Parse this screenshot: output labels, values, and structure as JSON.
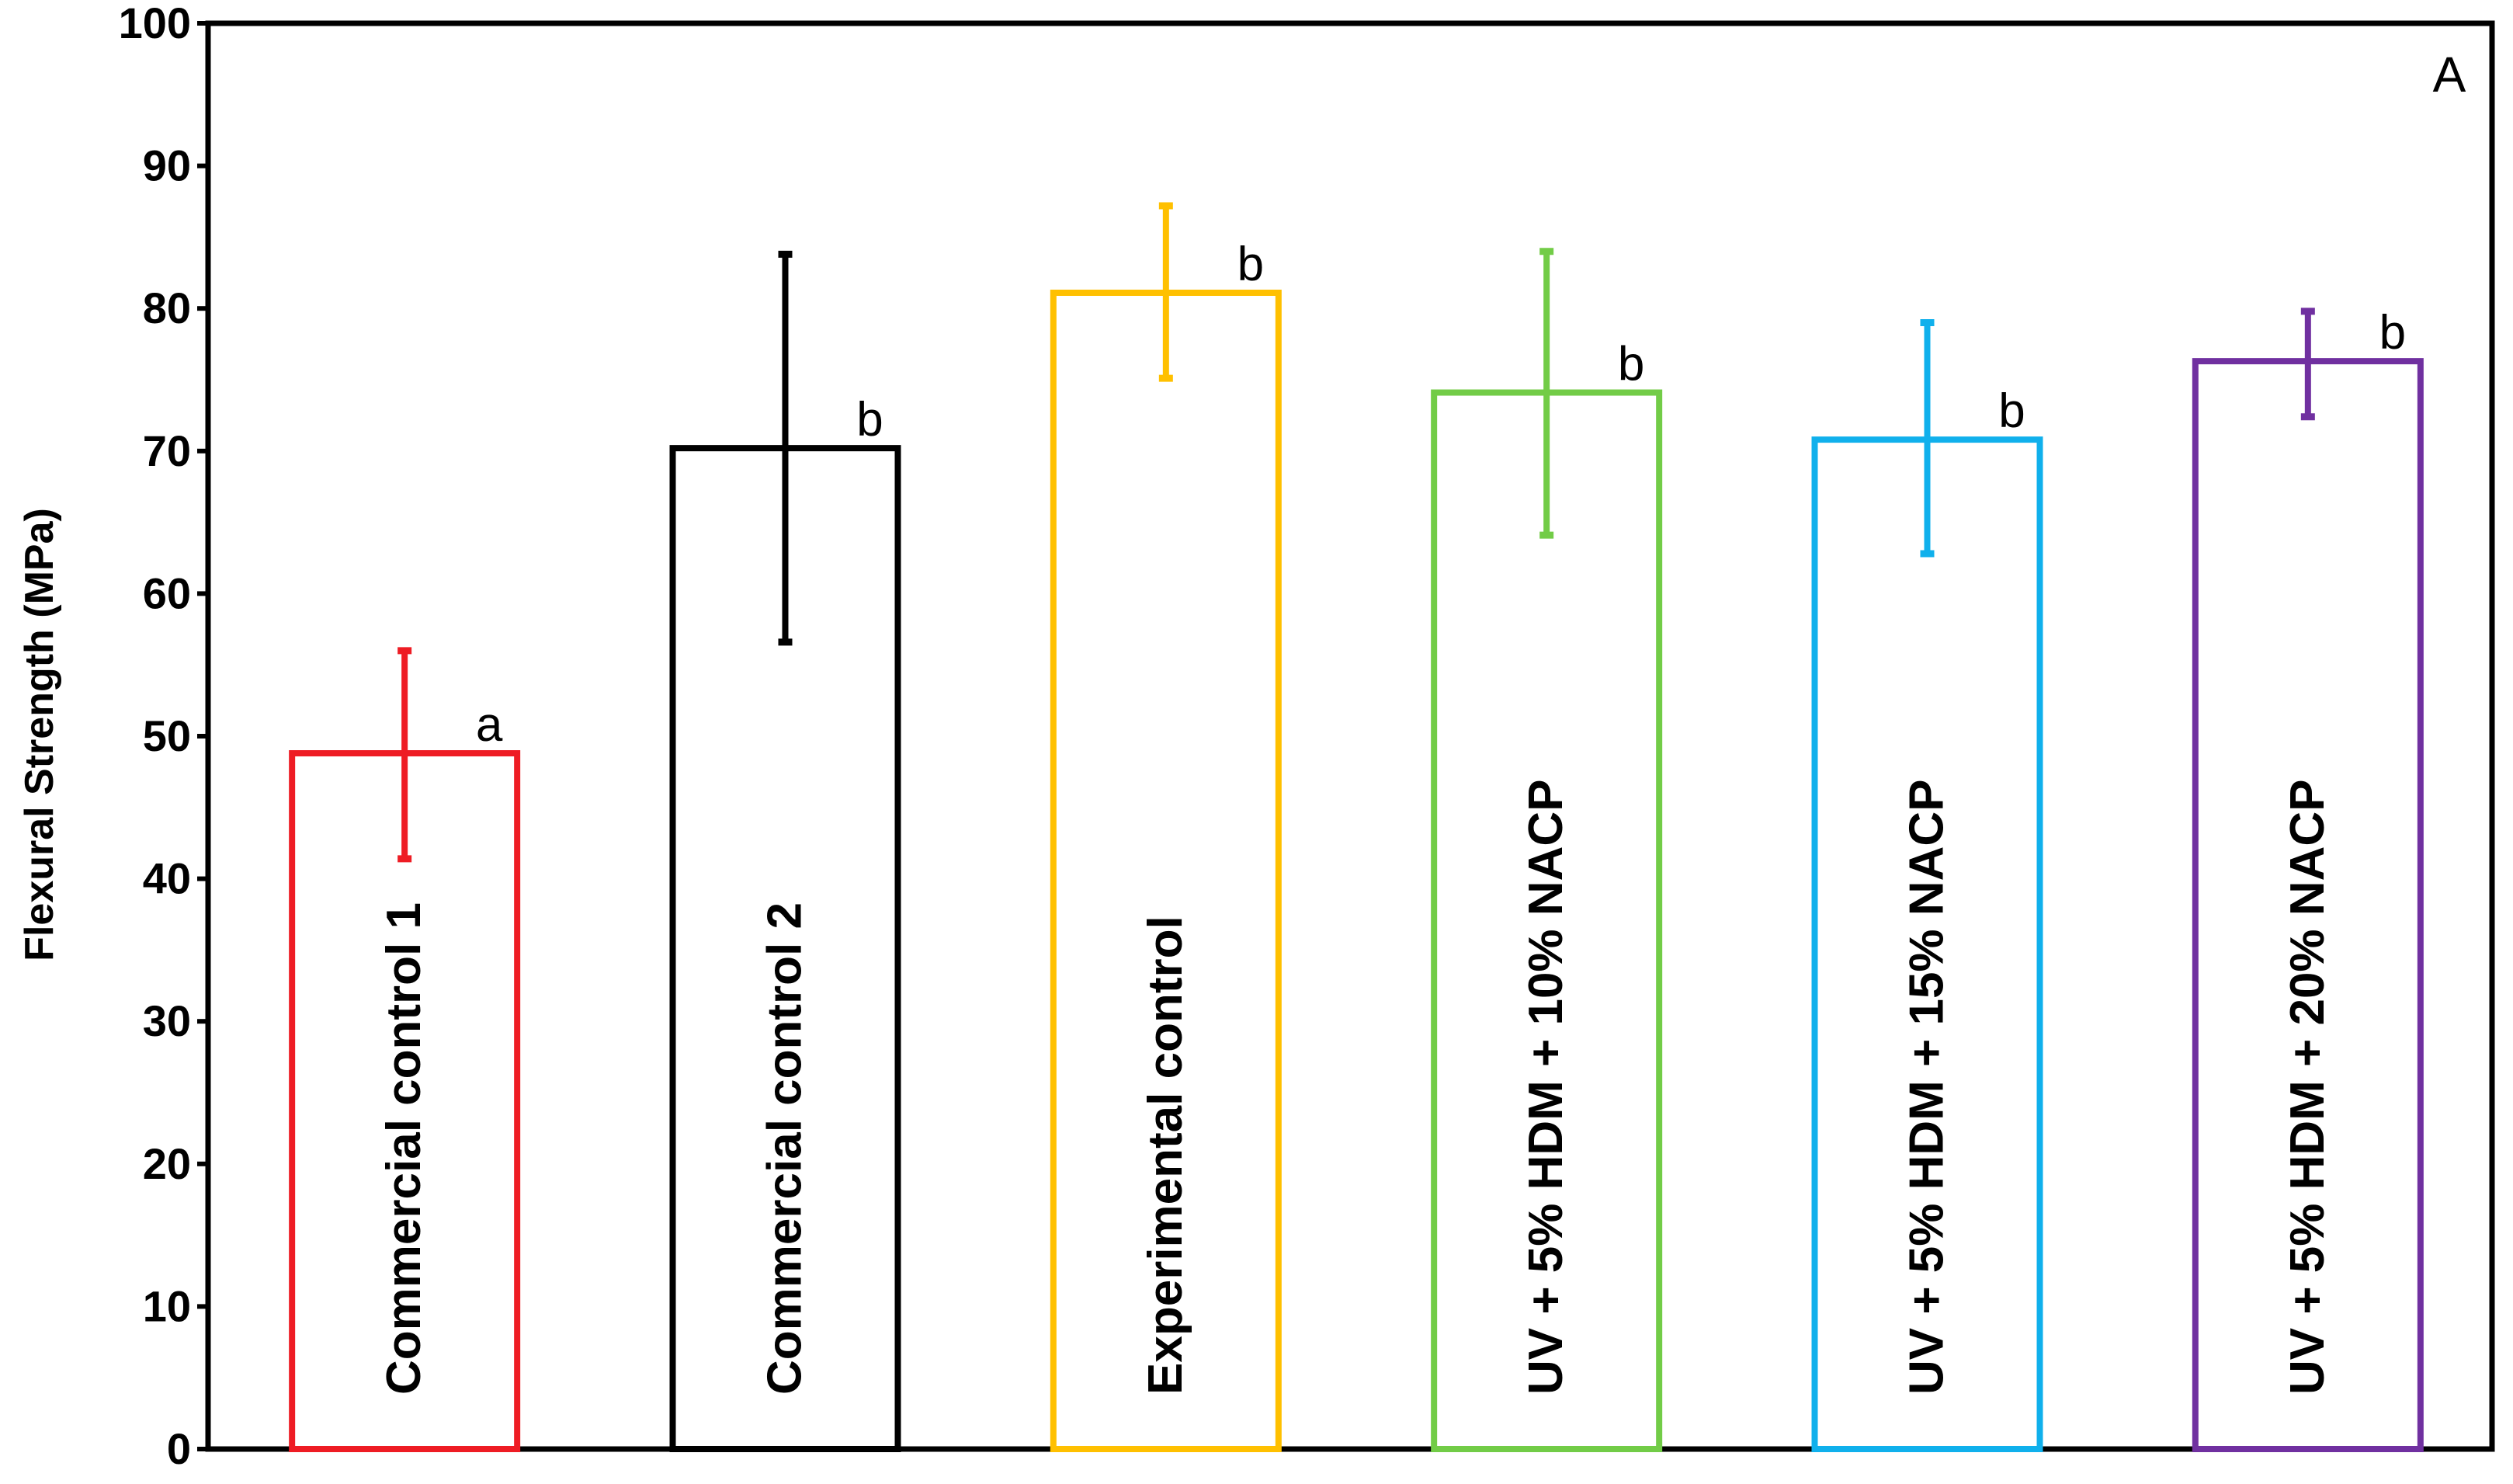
{
  "chart_data": {
    "type": "bar",
    "panel_label": "A",
    "ylabel": "Flexural Strength (MPa)",
    "xlabel": "",
    "ylim": [
      0,
      100
    ],
    "yticks": [
      0,
      10,
      20,
      30,
      40,
      50,
      60,
      70,
      80,
      90,
      100
    ],
    "categories": [
      "Commercial control 1",
      "Commercial control 2",
      "Experimental control",
      "UV + 5% HDM + 10% NACP",
      "UV + 5% HDM + 15% NACP",
      "UV + 5% HDM + 20% NACP"
    ],
    "values": [
      48.8,
      70.2,
      81.1,
      74.1,
      70.8,
      76.3
    ],
    "error_low": [
      41.4,
      56.6,
      75.1,
      64.1,
      62.8,
      72.4
    ],
    "error_high": [
      56.0,
      83.8,
      87.2,
      84.0,
      79.0,
      79.8
    ],
    "significance": [
      "a",
      "b",
      "b",
      "b",
      "b",
      "b"
    ],
    "colors": [
      "#ee1c24",
      "#000000",
      "#ffc000",
      "#72cc47",
      "#10b0ec",
      "#7030a0"
    ],
    "grid": false,
    "bar_fill": "none"
  }
}
